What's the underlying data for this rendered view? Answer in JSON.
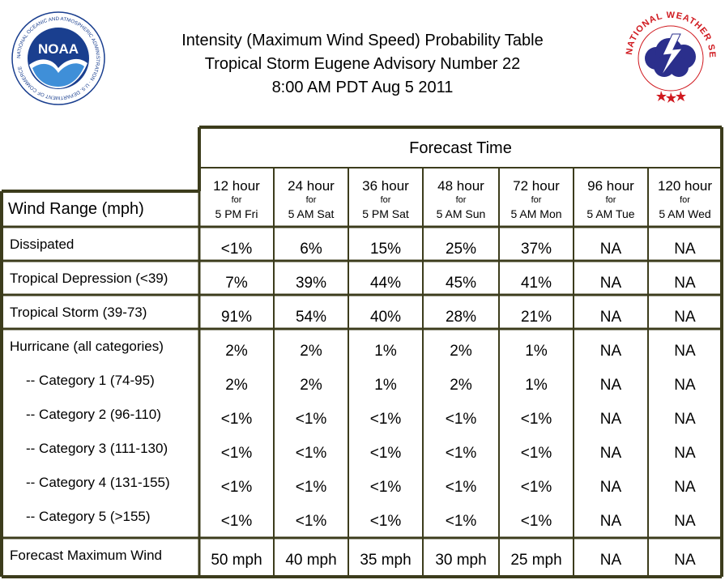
{
  "header": {
    "title_lines": [
      "Intensity (Maximum Wind Speed) Probability Table",
      "Tropical Storm Eugene Advisory Number 22",
      "8:00 AM PDT Aug 5 2011"
    ]
  },
  "logos": {
    "noaa": {
      "text": "NOAA",
      "ring_text": "NATIONAL OCEANIC AND ATMOSPHERIC ADMINISTRATION · U.S. DEPARTMENT OF COMMERCE",
      "color": "#1a3f8f"
    },
    "nws": {
      "ring_text": "NATIONAL WEATHER SERVICE",
      "color": "#d0191f",
      "cloud_color": "#2b2f8c"
    }
  },
  "colors": {
    "border": "#3c3c1c",
    "line": "#2c2c14"
  },
  "chart_data": {
    "type": "table",
    "title": "Intensity (Maximum Wind Speed) Probability Table",
    "group_header": "Forecast Time",
    "row_header": "Wind Range (mph)",
    "columns": [
      {
        "hour": "12 hour",
        "for": "for",
        "when": "5 PM Fri"
      },
      {
        "hour": "24 hour",
        "for": "for",
        "when": "5 AM Sat"
      },
      {
        "hour": "36 hour",
        "for": "for",
        "when": "5 PM Sat"
      },
      {
        "hour": "48 hour",
        "for": "for",
        "when": "5 AM Sun"
      },
      {
        "hour": "72 hour",
        "for": "for",
        "when": "5 AM Mon"
      },
      {
        "hour": "96 hour",
        "for": "for",
        "when": "5 AM Tue"
      },
      {
        "hour": "120 hour",
        "for": "for",
        "when": "5 AM Wed"
      }
    ],
    "rows": [
      {
        "label": "Dissipated",
        "values": [
          "<1%",
          "6%",
          "15%",
          "25%",
          "37%",
          "NA",
          "NA"
        ]
      },
      {
        "label": "Tropical Depression (<39)",
        "values": [
          "7%",
          "39%",
          "44%",
          "45%",
          "41%",
          "NA",
          "NA"
        ]
      },
      {
        "label": "Tropical Storm (39-73)",
        "values": [
          "91%",
          "54%",
          "40%",
          "28%",
          "21%",
          "NA",
          "NA"
        ]
      },
      {
        "label": "Hurricane (all categories)",
        "values": [
          "2%",
          "2%",
          "1%",
          "2%",
          "1%",
          "NA",
          "NA"
        ]
      },
      {
        "label": "-- Category 1 (74-95)",
        "values": [
          "2%",
          "2%",
          "1%",
          "2%",
          "1%",
          "NA",
          "NA"
        ]
      },
      {
        "label": "-- Category 2 (96-110)",
        "values": [
          "<1%",
          "<1%",
          "<1%",
          "<1%",
          "<1%",
          "NA",
          "NA"
        ]
      },
      {
        "label": "-- Category 3 (111-130)",
        "values": [
          "<1%",
          "<1%",
          "<1%",
          "<1%",
          "<1%",
          "NA",
          "NA"
        ]
      },
      {
        "label": "-- Category 4 (131-155)",
        "values": [
          "<1%",
          "<1%",
          "<1%",
          "<1%",
          "<1%",
          "NA",
          "NA"
        ]
      },
      {
        "label": "-- Category 5 (>155)",
        "values": [
          "<1%",
          "<1%",
          "<1%",
          "<1%",
          "<1%",
          "NA",
          "NA"
        ]
      },
      {
        "label": "Forecast Maximum Wind",
        "values": [
          "50 mph",
          "40 mph",
          "35 mph",
          "30 mph",
          "25 mph",
          "NA",
          "NA"
        ]
      }
    ]
  }
}
